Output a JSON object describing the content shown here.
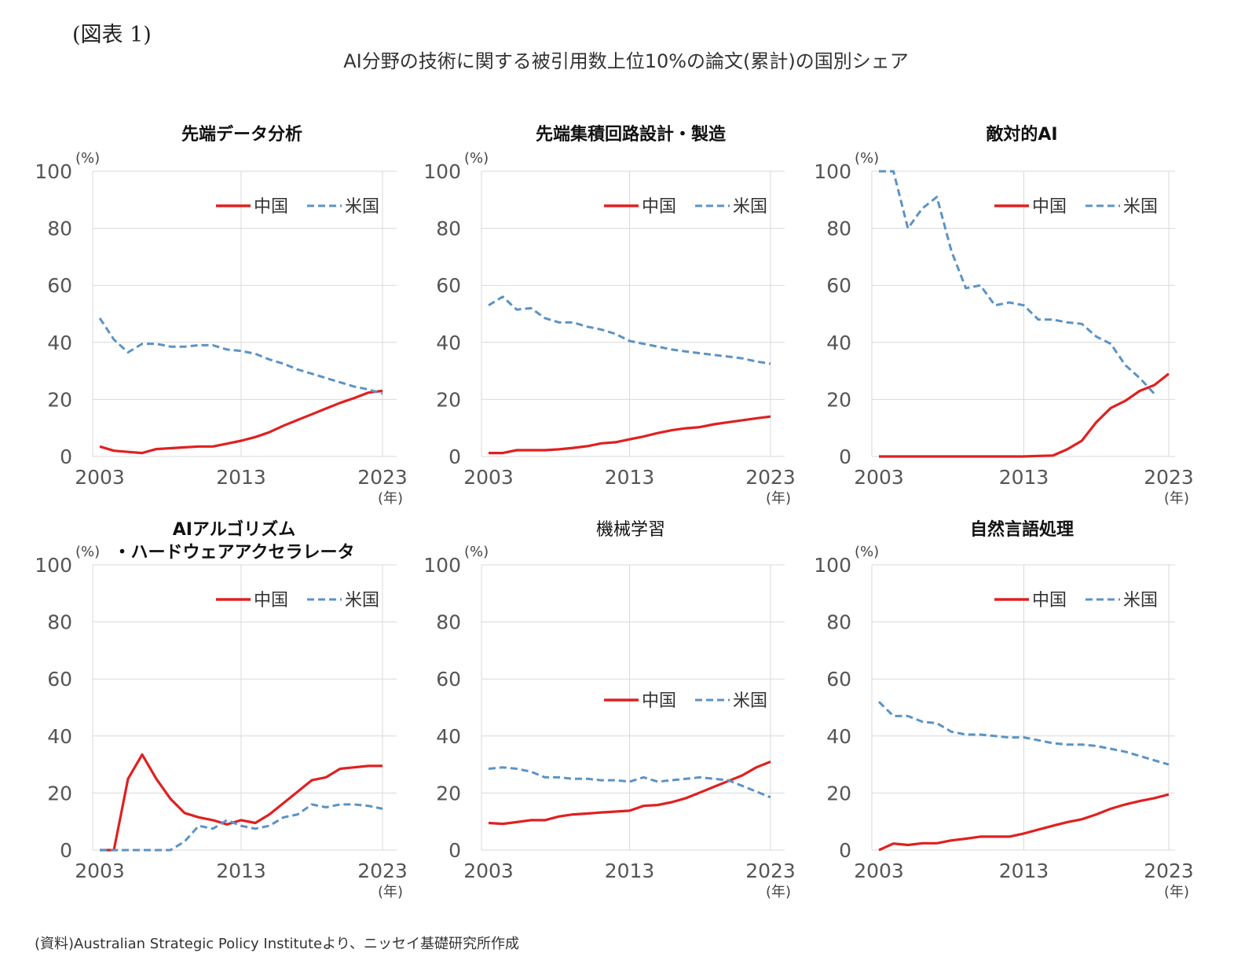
{
  "figure_label": "(図表 1)",
  "main_title": "AI分野の技術に関する被引用数上位10%の論文(累計)の国別シェア",
  "footer_note": "(資料)Australian Strategic Policy Instituteより、ニッセイ基礎研究所作成",
  "colors": {
    "china": "#e02020",
    "usa": "#5b93c5",
    "grid": "#d9d9d9"
  },
  "chart_data": [
    {
      "type": "line",
      "title": "先端データ分析",
      "y_unit": "(%)",
      "x_unit": "(年)",
      "ylim": [
        0,
        100
      ],
      "yticks": [
        0,
        20,
        40,
        60,
        80,
        100
      ],
      "xlim": [
        2003,
        2023
      ],
      "xticks": [
        2003,
        2013,
        2023
      ],
      "grid": true,
      "legend": "top-right",
      "x": [
        2003,
        2004,
        2005,
        2006,
        2007,
        2008,
        2009,
        2010,
        2011,
        2012,
        2013,
        2014,
        2015,
        2016,
        2017,
        2018,
        2019,
        2020,
        2021,
        2022,
        2023
      ],
      "series": [
        {
          "name": "中国",
          "values": [
            3.5,
            2,
            1.6,
            1.2,
            2.6,
            2.9,
            3.2,
            3.5,
            3.5,
            4.5,
            5.5,
            6.8,
            8.5,
            10.8,
            12.8,
            14.8,
            16.8,
            18.8,
            20.5,
            22.4,
            23
          ]
        },
        {
          "name": "米国",
          "values": [
            48.5,
            41,
            36.5,
            39.5,
            39.5,
            38.5,
            38.5,
            39,
            39,
            37.5,
            37,
            36,
            34,
            32.5,
            30.5,
            29,
            27.5,
            26,
            24.5,
            23.5,
            22
          ]
        }
      ]
    },
    {
      "type": "line",
      "title": "先端集積回路設計・製造",
      "y_unit": "(%)",
      "x_unit": "(年)",
      "ylim": [
        0,
        100
      ],
      "yticks": [
        0,
        20,
        40,
        60,
        80,
        100
      ],
      "xlim": [
        2003,
        2023
      ],
      "xticks": [
        2003,
        2013,
        2023
      ],
      "grid": true,
      "legend": "top-right",
      "x": [
        2003,
        2004,
        2005,
        2006,
        2007,
        2008,
        2009,
        2010,
        2011,
        2012,
        2013,
        2014,
        2015,
        2016,
        2017,
        2018,
        2019,
        2020,
        2021,
        2022,
        2023
      ],
      "series": [
        {
          "name": "中国",
          "values": [
            1.2,
            1.2,
            2.2,
            2.2,
            2.2,
            2.5,
            3,
            3.6,
            4.6,
            5,
            6,
            7,
            8.2,
            9.2,
            9.9,
            10.3,
            11.3,
            12,
            12.7,
            13.4,
            14
          ]
        },
        {
          "name": "米国",
          "values": [
            53,
            56,
            51.5,
            52,
            48.5,
            47,
            47,
            45.5,
            44.5,
            43,
            40.5,
            39.5,
            38.5,
            37.5,
            36.8,
            36.2,
            35.6,
            35,
            34.4,
            33.3,
            32.5
          ]
        }
      ]
    },
    {
      "type": "line",
      "title": "敵対的AI",
      "y_unit": "(%)",
      "x_unit": "(年)",
      "ylim": [
        0,
        100
      ],
      "yticks": [
        0,
        20,
        40,
        60,
        80,
        100
      ],
      "xlim": [
        2003,
        2023
      ],
      "xticks": [
        2003,
        2013,
        2023
      ],
      "grid": true,
      "legend": "top-right",
      "x": [
        2003,
        2004,
        2005,
        2006,
        2007,
        2008,
        2009,
        2010,
        2011,
        2012,
        2013,
        2014,
        2015,
        2016,
        2017,
        2018,
        2019,
        2020,
        2021,
        2022,
        2023
      ],
      "series": [
        {
          "name": "中国",
          "values": [
            0,
            0,
            0,
            0,
            0,
            0,
            0,
            0,
            0,
            0,
            0,
            0.2,
            0.3,
            2.5,
            5.5,
            12,
            17,
            19.5,
            23,
            25,
            29
          ]
        },
        {
          "name": "米国",
          "values": [
            100,
            100,
            80,
            87,
            91,
            72,
            59,
            60,
            53,
            54,
            53,
            48,
            48,
            47,
            46.5,
            42,
            39.5,
            32,
            27.5,
            22,
            null
          ]
        }
      ]
    },
    {
      "type": "line",
      "title": "AIアルゴリズム\n・ハードウェアアクセラレータ",
      "y_unit": "(%)",
      "x_unit": "(年)",
      "ylim": [
        0,
        100
      ],
      "yticks": [
        0,
        20,
        40,
        60,
        80,
        100
      ],
      "xlim": [
        2003,
        2023
      ],
      "xticks": [
        2003,
        2013,
        2023
      ],
      "grid": true,
      "legend": "top-right",
      "x": [
        2003,
        2004,
        2005,
        2006,
        2007,
        2008,
        2009,
        2010,
        2011,
        2012,
        2013,
        2014,
        2015,
        2016,
        2017,
        2018,
        2019,
        2020,
        2021,
        2022,
        2023
      ],
      "series": [
        {
          "name": "中国",
          "values": [
            0,
            0,
            25,
            33.5,
            25,
            18,
            13,
            11.5,
            10.5,
            9,
            10.5,
            9.5,
            12.5,
            16.5,
            20.5,
            24.5,
            25.5,
            28.5,
            29,
            29.5,
            29.5
          ]
        },
        {
          "name": "米国",
          "values": [
            0,
            0,
            0,
            0,
            0,
            0,
            3,
            8.5,
            7.5,
            10.5,
            8.5,
            7.5,
            8.5,
            11.5,
            12.5,
            16,
            15,
            16,
            16,
            15.5,
            14.5
          ]
        }
      ]
    },
    {
      "type": "line",
      "title": "機械学習",
      "y_unit": "(%)",
      "x_unit": "(年)",
      "ylim": [
        0,
        100
      ],
      "yticks": [
        0,
        20,
        40,
        60,
        80,
        100
      ],
      "xlim": [
        2003,
        2023
      ],
      "xticks": [
        2003,
        2013,
        2023
      ],
      "grid": true,
      "legend": "center-right",
      "x": [
        2003,
        2004,
        2005,
        2006,
        2007,
        2008,
        2009,
        2010,
        2011,
        2012,
        2013,
        2014,
        2015,
        2016,
        2017,
        2018,
        2019,
        2020,
        2021,
        2022,
        2023
      ],
      "series": [
        {
          "name": "中国",
          "values": [
            9.5,
            9.2,
            9.8,
            10.5,
            10.5,
            11.8,
            12.5,
            12.8,
            13.2,
            13.5,
            13.8,
            15.5,
            15.8,
            16.8,
            18.2,
            20.2,
            22.2,
            24.2,
            26.2,
            29,
            31
          ]
        },
        {
          "name": "米国",
          "values": [
            28.5,
            29,
            28.5,
            27.5,
            25.5,
            25.5,
            25,
            25,
            24.5,
            24.5,
            24,
            25.5,
            24,
            24.5,
            25,
            25.5,
            25,
            24.5,
            22.5,
            20.5,
            18.5
          ]
        }
      ]
    },
    {
      "type": "line",
      "title": "自然言語処理",
      "y_unit": "(%)",
      "x_unit": "(年)",
      "ylim": [
        0,
        100
      ],
      "yticks": [
        0,
        20,
        40,
        60,
        80,
        100
      ],
      "xlim": [
        2003,
        2023
      ],
      "xticks": [
        2003,
        2013,
        2023
      ],
      "grid": true,
      "legend": "top-right",
      "x": [
        2003,
        2004,
        2005,
        2006,
        2007,
        2008,
        2009,
        2010,
        2011,
        2012,
        2013,
        2014,
        2015,
        2016,
        2017,
        2018,
        2019,
        2020,
        2021,
        2022,
        2023
      ],
      "series": [
        {
          "name": "中国",
          "values": [
            0,
            2.3,
            1.8,
            2.4,
            2.4,
            3.4,
            4,
            4.7,
            4.7,
            4.7,
            5.8,
            7.2,
            8.5,
            9.8,
            10.8,
            12.5,
            14.5,
            16,
            17.2,
            18.2,
            19.5
          ]
        },
        {
          "name": "米国",
          "values": [
            52,
            47,
            47,
            45,
            44.5,
            41.5,
            40.5,
            40.5,
            40,
            39.5,
            39.5,
            38.5,
            37.5,
            37,
            37,
            36.5,
            35.5,
            34.5,
            33,
            31.5,
            30
          ]
        }
      ]
    }
  ]
}
